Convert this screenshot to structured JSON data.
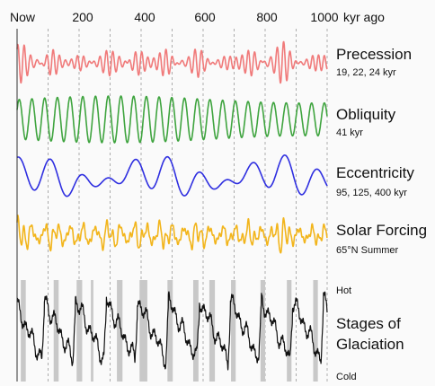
{
  "chart_data": {
    "type": "line",
    "x_axis": {
      "ticks": [
        "Now",
        "200",
        "400",
        "600",
        "800",
        "1000"
      ],
      "tick_values": [
        0,
        200,
        400,
        600,
        800,
        1000
      ],
      "unit_label": "kyr ago",
      "range": [
        0,
        1000
      ],
      "grid": "dashed vertical at 100 kyr"
    },
    "series": [
      {
        "name": "Precession",
        "sub": "19, 22, 24 kyr",
        "color": "#f07a7a",
        "periods_kyr": [
          19,
          22,
          24
        ],
        "amplitude_modulated": true
      },
      {
        "name": "Obliquity",
        "sub": "41 kyr",
        "color": "#3fa43f",
        "periods_kyr": [
          41
        ]
      },
      {
        "name": "Eccentricity",
        "sub": "95, 125, 400 kyr",
        "color": "#2f2fe0",
        "periods_kyr": [
          95,
          125,
          400
        ]
      },
      {
        "name": "Solar Forcing",
        "sub": "65°N Summer",
        "color": "#f2b51c"
      },
      {
        "name": "Stages of",
        "name2": "Glaciation",
        "color": "#111111",
        "top_label": "Hot",
        "bottom_label": "Cold",
        "interglacial_bands_kyr": [
          [
            12,
            28
          ],
          [
            118,
            134
          ],
          [
            192,
            210
          ],
          [
            238,
            246
          ],
          [
            322,
            340
          ],
          [
            395,
            420
          ],
          [
            485,
            502
          ],
          [
            568,
            585
          ],
          [
            620,
            638
          ],
          [
            690,
            705
          ],
          [
            785,
            800
          ],
          [
            870,
            885
          ],
          [
            955,
            970
          ]
        ]
      }
    ]
  }
}
